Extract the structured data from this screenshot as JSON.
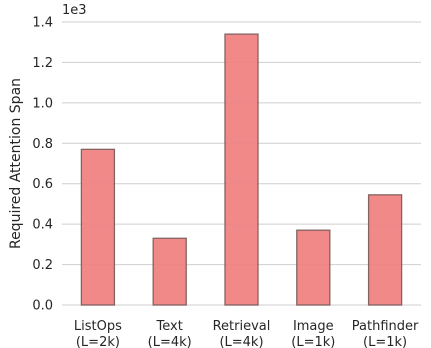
{
  "chart_data": {
    "type": "bar",
    "categories": [
      "ListOps\n(L=2k)",
      "Text\n(L=4k)",
      "Retrieval\n(L=4k)",
      "Image\n(L=1k)",
      "Pathfinder\n(L=1k)"
    ],
    "series": [
      {
        "values": [
          770,
          330,
          1340,
          370,
          545
        ]
      }
    ],
    "title": "",
    "xlabel": "",
    "ylabel": "Required Attention Span",
    "scale_label": "1e3",
    "ylim": [
      0,
      1400
    ],
    "yticks": [
      0,
      200,
      400,
      600,
      800,
      1000,
      1200,
      1400
    ],
    "ytick_labels": [
      "0.0",
      "0.2",
      "0.4",
      "0.6",
      "0.8",
      "1.0",
      "1.2",
      "1.4"
    ],
    "grid": true,
    "legend": "none",
    "colors": {
      "bar": "#f08080",
      "edge": "#7a5656",
      "grid": "#cfcfcf"
    }
  }
}
